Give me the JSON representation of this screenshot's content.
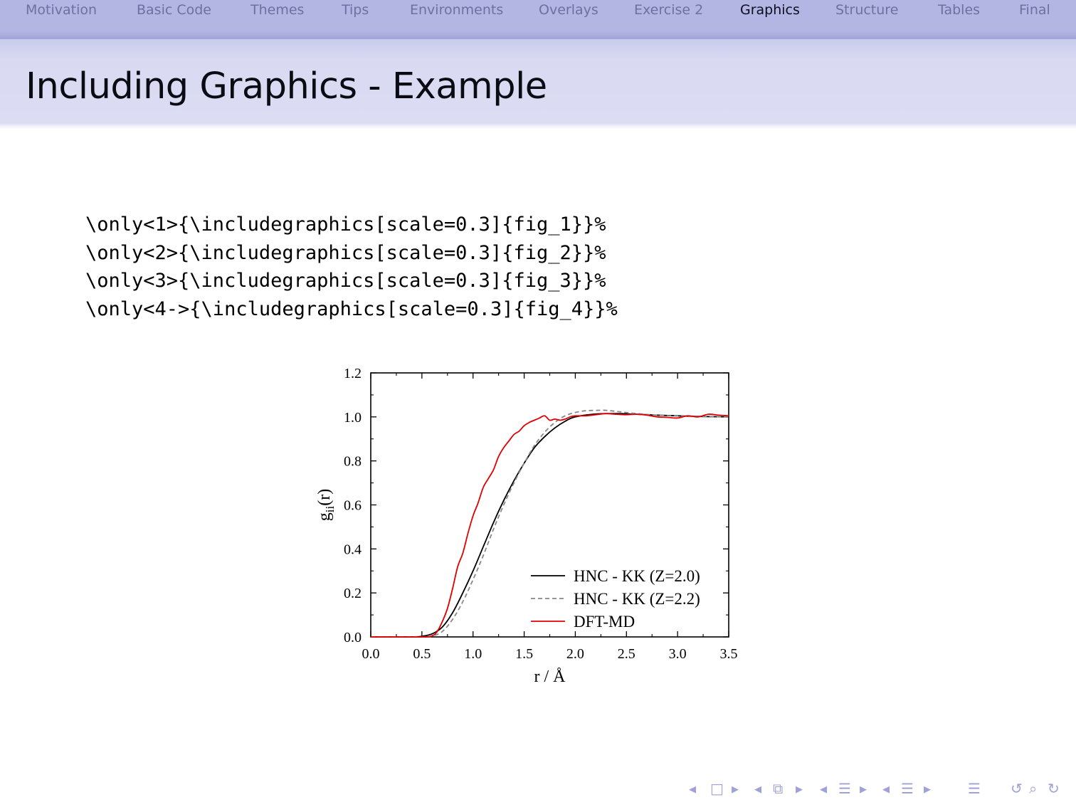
{
  "nav": {
    "items": [
      "Motivation",
      "Basic Code",
      "Themes",
      "Tips",
      "Environments",
      "Overlays",
      "Exercise 2",
      "Graphics",
      "Structure",
      "Tables",
      "Final"
    ],
    "active": "Graphics"
  },
  "frame": {
    "title": "Including Graphics - Example"
  },
  "code_lines": [
    "\\only<1>{\\includegraphics[scale=0.3]{fig_1}}%",
    "\\only<2>{\\includegraphics[scale=0.3]{fig_2}}%",
    "\\only<3>{\\includegraphics[scale=0.3]{fig_3}}%",
    "\\only<4->{\\includegraphics[scale=0.3]{fig_4}}%"
  ],
  "chart_data": {
    "type": "line",
    "xlabel": "r / Å",
    "ylabel": "g_ii(r)",
    "xlim": [
      0.0,
      3.5
    ],
    "ylim": [
      0.0,
      1.2
    ],
    "x_ticks": [
      "0.0",
      "0.5",
      "1.0",
      "1.5",
      "2.0",
      "2.5",
      "3.0",
      "3.5"
    ],
    "y_ticks": [
      "0.0",
      "0.2",
      "0.4",
      "0.6",
      "0.8",
      "1.0",
      "1.2"
    ],
    "grid": false,
    "legend_position": "bottom-right",
    "series": [
      {
        "name": "HNC - KK (Z=2.0)",
        "color": "#000000",
        "style": "solid",
        "x": [
          0.0,
          0.4,
          0.5,
          0.6,
          0.7,
          0.8,
          0.9,
          1.0,
          1.1,
          1.2,
          1.3,
          1.4,
          1.5,
          1.6,
          1.7,
          1.8,
          1.9,
          2.0,
          2.2,
          2.4,
          2.6,
          2.8,
          3.0,
          3.2,
          3.5
        ],
        "y": [
          0.0,
          0.0,
          0.003,
          0.014,
          0.045,
          0.11,
          0.2,
          0.3,
          0.41,
          0.52,
          0.62,
          0.71,
          0.79,
          0.86,
          0.91,
          0.95,
          0.98,
          1.0,
          1.013,
          1.015,
          1.012,
          1.008,
          1.005,
          1.002,
          1.0
        ]
      },
      {
        "name": "HNC - KK (Z=2.2)",
        "color": "#888888",
        "style": "dashed",
        "x": [
          0.0,
          0.5,
          0.6,
          0.7,
          0.8,
          0.9,
          1.0,
          1.1,
          1.2,
          1.3,
          1.4,
          1.5,
          1.6,
          1.7,
          1.8,
          1.9,
          2.0,
          2.1,
          2.2,
          2.3,
          2.4,
          2.6,
          2.8,
          3.0,
          3.2,
          3.5
        ],
        "y": [
          0.0,
          0.0,
          0.004,
          0.025,
          0.08,
          0.16,
          0.26,
          0.37,
          0.49,
          0.6,
          0.7,
          0.79,
          0.87,
          0.93,
          0.975,
          1.005,
          1.02,
          1.028,
          1.03,
          1.03,
          1.025,
          1.015,
          1.008,
          1.004,
          1.001,
          1.0
        ]
      },
      {
        "name": "DFT-MD",
        "color": "#e00000",
        "style": "solid",
        "x": [
          0.0,
          0.5,
          0.6,
          0.65,
          0.7,
          0.75,
          0.8,
          0.85,
          0.9,
          0.95,
          1.0,
          1.05,
          1.1,
          1.15,
          1.2,
          1.25,
          1.3,
          1.35,
          1.4,
          1.45,
          1.5,
          1.55,
          1.6,
          1.65,
          1.7,
          1.75,
          1.8,
          1.85,
          1.9,
          1.95,
          2.0,
          2.1,
          2.2,
          2.3,
          2.4,
          2.5,
          2.6,
          2.7,
          2.8,
          2.9,
          3.0,
          3.1,
          3.2,
          3.3,
          3.4,
          3.5
        ],
        "y": [
          0.0,
          0.0,
          0.005,
          0.025,
          0.07,
          0.13,
          0.22,
          0.32,
          0.38,
          0.47,
          0.55,
          0.61,
          0.68,
          0.72,
          0.76,
          0.82,
          0.86,
          0.89,
          0.92,
          0.935,
          0.96,
          0.975,
          0.985,
          0.995,
          1.005,
          0.985,
          0.99,
          0.985,
          0.99,
          1.0,
          1.005,
          1.005,
          1.01,
          1.015,
          1.012,
          1.01,
          1.012,
          1.008,
          1.0,
          0.998,
          0.995,
          1.005,
          1.0,
          1.012,
          1.008,
          1.005
        ]
      }
    ]
  },
  "nav_controls": [
    "◂",
    "□",
    "▸",
    "◂",
    "⧉",
    "▸",
    "◂",
    "☰",
    "▸",
    "◂",
    "☰",
    "▸",
    "☰",
    "↺",
    "⌕",
    "↻"
  ]
}
